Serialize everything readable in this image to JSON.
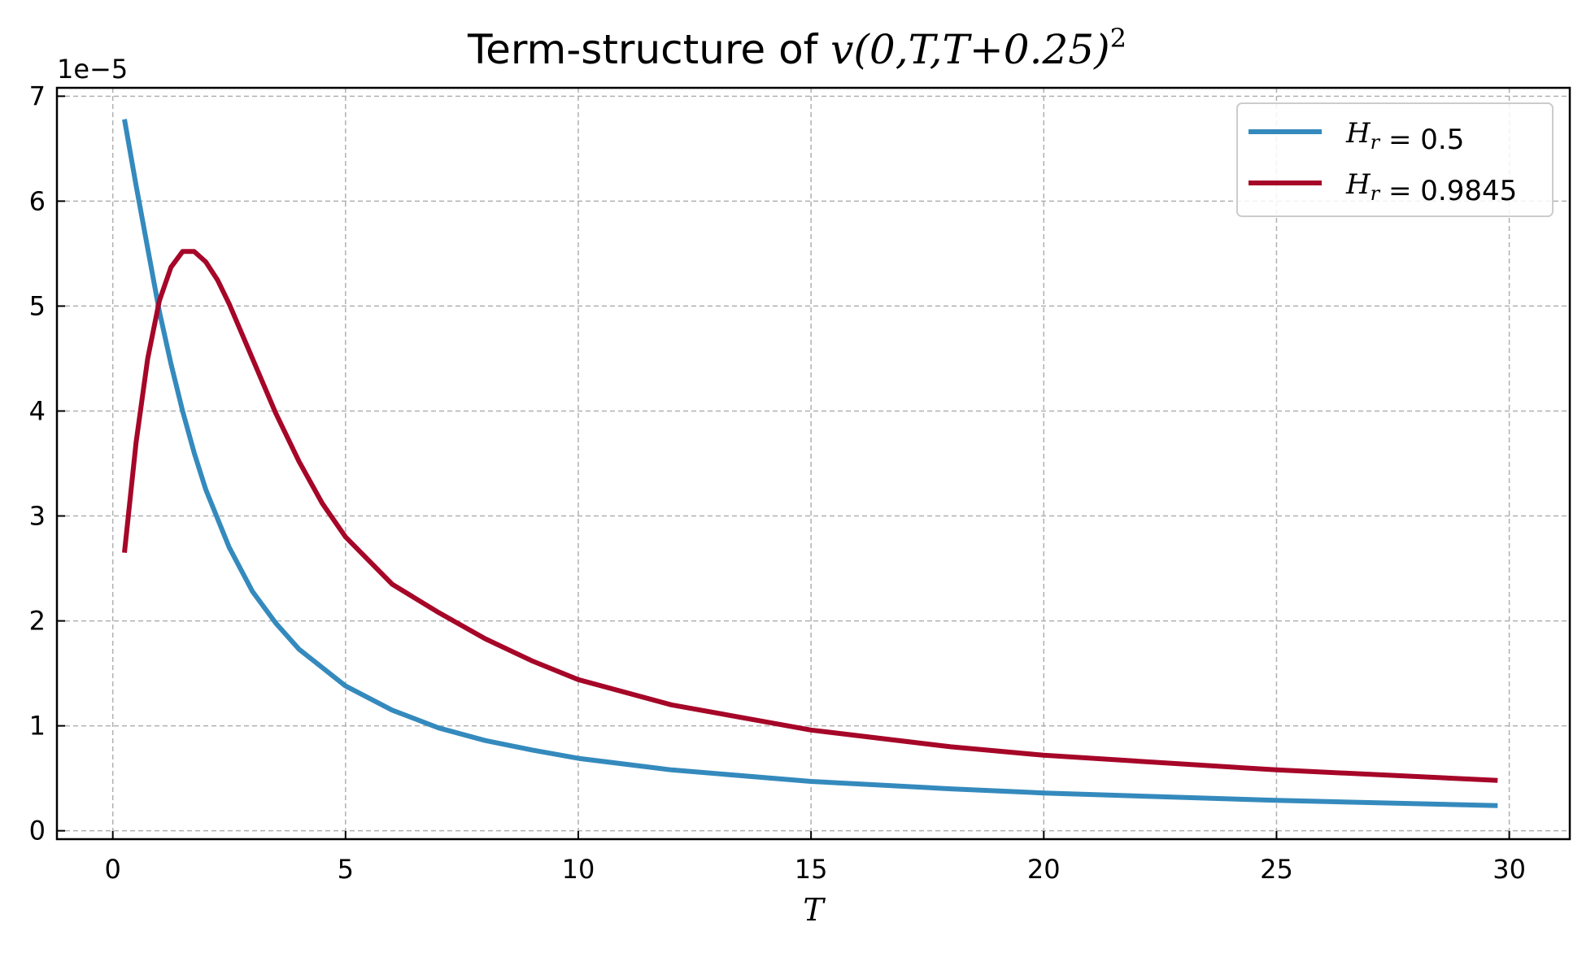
{
  "chart_data": {
    "type": "line",
    "title": {
      "prefix": "Term-structure of ",
      "math": "v(0,T,T+0.25)",
      "superscript": "2"
    },
    "xlabel": "T",
    "ylabel": "",
    "y_offset_label": "1e−5",
    "xlim": [
      -1.2,
      31.3
    ],
    "ylim": [
      -0.08,
      7.08
    ],
    "y_scale_multiplier": 1e-05,
    "x_ticks": [
      0,
      5,
      10,
      15,
      20,
      25,
      30
    ],
    "x_tick_labels": [
      "0",
      "5",
      "10",
      "15",
      "20",
      "25",
      "30"
    ],
    "y_ticks": [
      0,
      1,
      2,
      3,
      4,
      5,
      6,
      7
    ],
    "y_tick_labels": [
      "0",
      "1",
      "2",
      "3",
      "4",
      "5",
      "6",
      "7"
    ],
    "grid": true,
    "legend_position": "top-right",
    "series": [
      {
        "name_math": "H_r",
        "name_value": "0.5",
        "color": "#348abd",
        "points": [
          [
            0.25,
            6.78
          ],
          [
            0.5,
            6.15
          ],
          [
            0.75,
            5.55
          ],
          [
            1.0,
            4.95
          ],
          [
            1.25,
            4.45
          ],
          [
            1.5,
            4.0
          ],
          [
            1.75,
            3.6
          ],
          [
            2.0,
            3.25
          ],
          [
            2.5,
            2.7
          ],
          [
            3.0,
            2.28
          ],
          [
            3.5,
            1.98
          ],
          [
            4.0,
            1.73
          ],
          [
            5.0,
            1.38
          ],
          [
            6.0,
            1.15
          ],
          [
            7.0,
            0.98
          ],
          [
            8.0,
            0.86
          ],
          [
            9.0,
            0.77
          ],
          [
            10.0,
            0.69
          ],
          [
            12.0,
            0.58
          ],
          [
            15.0,
            0.47
          ],
          [
            18.0,
            0.4
          ],
          [
            20.0,
            0.36
          ],
          [
            25.0,
            0.29
          ],
          [
            29.75,
            0.24
          ]
        ]
      },
      {
        "name_math": "H_r",
        "name_value": "0.9845",
        "color": "#a60628",
        "points": [
          [
            0.25,
            2.65
          ],
          [
            0.5,
            3.7
          ],
          [
            0.75,
            4.5
          ],
          [
            1.0,
            5.05
          ],
          [
            1.25,
            5.37
          ],
          [
            1.5,
            5.52
          ],
          [
            1.75,
            5.52
          ],
          [
            2.0,
            5.42
          ],
          [
            2.25,
            5.25
          ],
          [
            2.5,
            5.02
          ],
          [
            3.0,
            4.5
          ],
          [
            3.5,
            3.98
          ],
          [
            4.0,
            3.52
          ],
          [
            4.5,
            3.12
          ],
          [
            5.0,
            2.8
          ],
          [
            6.0,
            2.35
          ],
          [
            7.0,
            2.08
          ],
          [
            8.0,
            1.83
          ],
          [
            9.0,
            1.62
          ],
          [
            10.0,
            1.44
          ],
          [
            12.0,
            1.2
          ],
          [
            15.0,
            0.96
          ],
          [
            18.0,
            0.8
          ],
          [
            20.0,
            0.72
          ],
          [
            25.0,
            0.58
          ],
          [
            29.75,
            0.48
          ]
        ]
      }
    ]
  }
}
